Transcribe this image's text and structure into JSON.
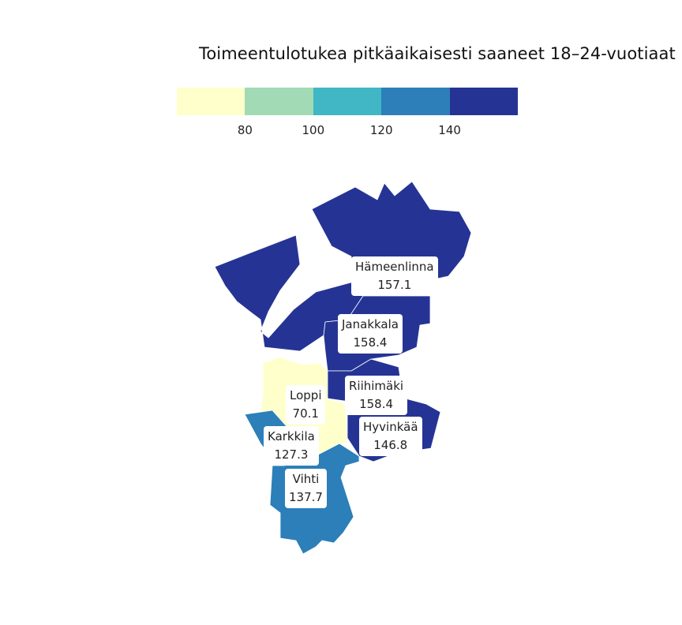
{
  "title": "Toimeentulotukea pitkäaikaisesti saaneet 18–24-vuotiaat",
  "legend": {
    "colors": [
      "#ffffcc",
      "#a1dab4",
      "#41b6c4",
      "#2c7fb8",
      "#253494"
    ],
    "ticks": [
      "80",
      "100",
      "120",
      "140"
    ]
  },
  "regions": [
    {
      "name": "Hämeenlinna",
      "value": "157.1",
      "color": "#253494"
    },
    {
      "name": "Janakkala",
      "value": "158.4",
      "color": "#253494"
    },
    {
      "name": "Riihimäki",
      "value": "158.4",
      "color": "#253494"
    },
    {
      "name": "Hyvinkää",
      "value": "146.8",
      "color": "#253494"
    },
    {
      "name": "Loppi",
      "value": "70.1",
      "color": "#ffffcc"
    },
    {
      "name": "Karkkila",
      "value": "127.3",
      "color": "#2c7fb8"
    },
    {
      "name": "Vihti",
      "value": "137.7",
      "color": "#2c7fb8"
    }
  ]
}
